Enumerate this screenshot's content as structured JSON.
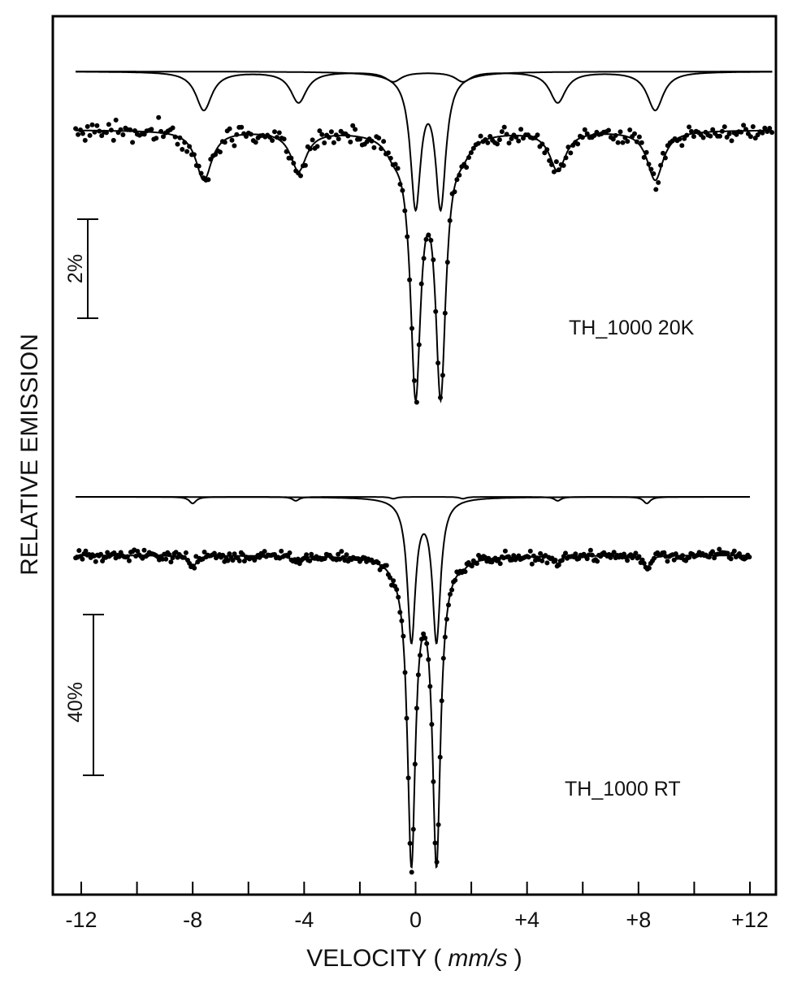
{
  "chart_data": {
    "type": "line",
    "xlabel_main": "VELOCITY (",
    "xlabel_unit": "mm/s",
    "xlabel_close": ")",
    "ylabel": "RELATIVE EMISSION",
    "xlim": [
      -12.5,
      13
    ],
    "xticks": [
      -12,
      -10,
      -8,
      -6,
      -4,
      -2,
      0,
      2,
      4,
      6,
      8,
      10,
      12
    ],
    "xtick_labels": [
      {
        "value": -12,
        "label": "-12"
      },
      {
        "value": -8,
        "label": "-8"
      },
      {
        "value": -4,
        "label": "-4"
      },
      {
        "value": 0,
        "label": "0"
      },
      {
        "value": 4,
        "label": "+4"
      },
      {
        "value": 8,
        "label": "+8"
      },
      {
        "value": 12,
        "label": "+12"
      }
    ],
    "grid": false,
    "panels": [
      {
        "label": "TH_1000 20K",
        "scale_bar": {
          "label": "2%",
          "value": 2
        },
        "velocity_range": [
          -12.2,
          12.8
        ],
        "units": "percent_emission",
        "sextet": {
          "center": 0.45,
          "lines": [
            -7.6,
            -4.2,
            -0.8,
            1.7,
            5.1,
            8.6
          ],
          "depths": [
            1.0,
            0.8,
            0.25,
            0.25,
            0.8,
            1.0
          ],
          "width": 0.7
        },
        "doublet": {
          "center": 0.45,
          "lines": [
            0.0,
            0.9
          ],
          "depths": [
            5.1,
            5.1
          ],
          "width": 0.45
        },
        "offset_component_lines": 1.08,
        "noise": 0.12
      },
      {
        "label": "TH_1000 RT",
        "scale_bar": {
          "label": "40%",
          "value": 40
        },
        "velocity_range": [
          -12.2,
          12.0
        ],
        "units": "percent_emission",
        "sextet": {
          "center": 0.3,
          "lines": [
            -8.0,
            -4.3,
            -0.8,
            1.7,
            5.1,
            8.3
          ],
          "depths": [
            3.0,
            1.8,
            0.8,
            0.8,
            1.8,
            3.0
          ],
          "width": 0.3
        },
        "doublet": {
          "center": 0.3,
          "lines": [
            -0.15,
            0.75
          ],
          "depths": [
            75,
            75
          ],
          "width": 0.35
        },
        "offset_component_lines": 13,
        "noise": 0.9
      }
    ]
  }
}
